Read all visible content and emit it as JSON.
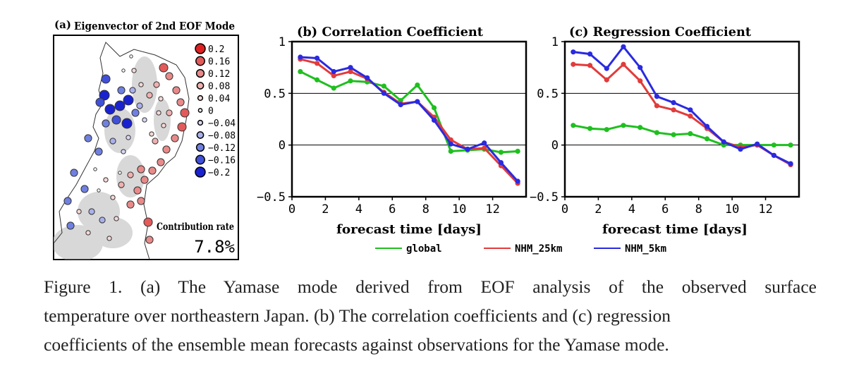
{
  "figure": {
    "panel_a": {
      "tag": "(a)",
      "title": "Eigenvector of 2nd EOF Mode",
      "legend": [
        "0.2",
        "0.16",
        "0.12",
        "0.08",
        "0.04",
        "0",
        "−0.04",
        "−0.08",
        "−0.12",
        "−0.16",
        "−0.2"
      ],
      "contribution_label": "Contribution rate",
      "contribution_value": "7.8%"
    },
    "legend": [
      "global",
      "NHM_25km",
      "NHM_5km"
    ],
    "caption": [
      "Figure 1. (a) The Yamase mode derived from EOF analysis of the observed surface",
      "temperature over northeastern Japan. (b) The correlation coefficients and (c) regression",
      "coefficients of the ensemble mean forecasts against observations for the Yamase mode."
    ]
  },
  "chart_data": [
    {
      "type": "line",
      "title": "(b) Correlation Coefficient",
      "xlabel": "forecast time [days]",
      "ylabel": "",
      "xlim": [
        0,
        14
      ],
      "ylim": [
        -0.5,
        1
      ],
      "xticks": [
        "0",
        "2",
        "4",
        "6",
        "8",
        "10",
        "12"
      ],
      "yticks": [
        "−0.5",
        "0",
        "0.5",
        "1"
      ],
      "x": [
        0.5,
        1.5,
        2.5,
        3.5,
        4.5,
        5.5,
        6.5,
        7.5,
        8.5,
        9.5,
        10.5,
        11.5,
        12.5,
        13.5
      ],
      "series": [
        {
          "name": "global",
          "color": "#1fbf1f",
          "values": [
            0.71,
            0.63,
            0.55,
            0.62,
            0.61,
            0.57,
            0.43,
            0.58,
            0.36,
            -0.06,
            -0.05,
            -0.04,
            -0.07,
            -0.06
          ]
        },
        {
          "name": "NHM_25km",
          "color": "#e23b3b",
          "values": [
            0.83,
            0.79,
            0.67,
            0.71,
            0.64,
            0.51,
            0.4,
            0.42,
            0.27,
            0.05,
            -0.04,
            -0.03,
            -0.2,
            -0.37
          ]
        },
        {
          "name": "NHM_5km",
          "color": "#2a2ae0",
          "values": [
            0.85,
            0.84,
            0.71,
            0.75,
            0.65,
            0.5,
            0.39,
            0.42,
            0.24,
            0.01,
            -0.04,
            0.02,
            -0.17,
            -0.35
          ]
        }
      ],
      "hlines": [
        0,
        0.5
      ]
    },
    {
      "type": "line",
      "title": "(c) Regression Coefficient",
      "xlabel": "forecast time [days]",
      "ylabel": "",
      "xlim": [
        0,
        14
      ],
      "ylim": [
        -0.5,
        1
      ],
      "xticks": [
        "0",
        "2",
        "4",
        "6",
        "8",
        "10",
        "12"
      ],
      "yticks": [
        "−0.5",
        "0",
        "0.5",
        "1"
      ],
      "x": [
        0.5,
        1.5,
        2.5,
        3.5,
        4.5,
        5.5,
        6.5,
        7.5,
        8.5,
        9.5,
        10.5,
        11.5,
        12.5,
        13.5
      ],
      "series": [
        {
          "name": "global",
          "color": "#1fbf1f",
          "values": [
            0.19,
            0.16,
            0.15,
            0.19,
            0.17,
            0.12,
            0.1,
            0.11,
            0.06,
            0.0,
            0.0,
            0.0,
            0.0,
            0.0
          ]
        },
        {
          "name": "NHM_25km",
          "color": "#e23b3b",
          "values": [
            0.78,
            0.77,
            0.63,
            0.78,
            0.62,
            0.38,
            0.34,
            0.28,
            0.16,
            0.03,
            -0.02,
            0.0,
            -0.1,
            -0.19
          ]
        },
        {
          "name": "NHM_5km",
          "color": "#2a2ae0",
          "values": [
            0.9,
            0.88,
            0.74,
            0.95,
            0.75,
            0.47,
            0.41,
            0.34,
            0.18,
            0.03,
            -0.04,
            0.01,
            -0.1,
            -0.18
          ]
        }
      ],
      "hlines": [
        0,
        0.5
      ]
    }
  ]
}
